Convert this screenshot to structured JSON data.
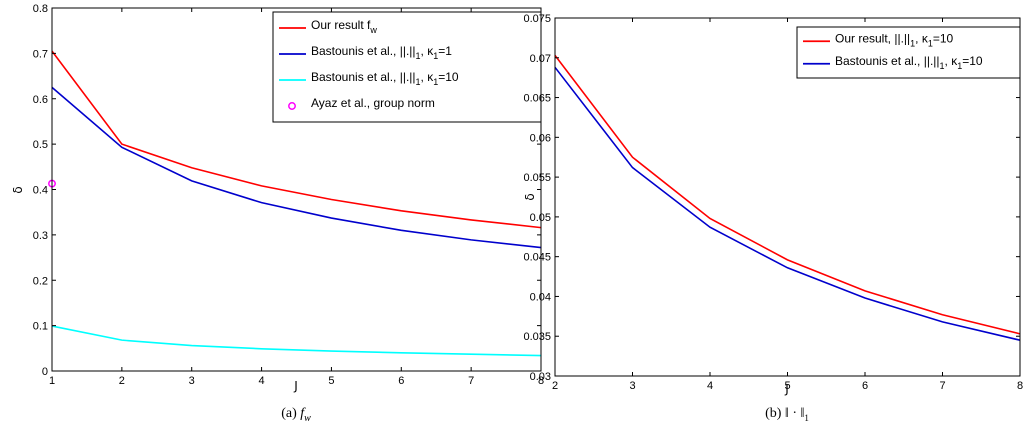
{
  "chart_data": [
    {
      "type": "line",
      "caption": "(a) f_w",
      "caption_parts": [
        "(a) ",
        "f",
        "w"
      ],
      "xlabel": "J",
      "ylabel": "δ",
      "xlim": [
        1,
        8
      ],
      "ylim": [
        0,
        0.8
      ],
      "xticks": [
        "1",
        "2",
        "3",
        "4",
        "5",
        "6",
        "7",
        "8"
      ],
      "yticks": [
        "0",
        "0.1",
        "0.2",
        "0.3",
        "0.4",
        "0.5",
        "0.6",
        "0.7",
        "0.8"
      ],
      "legend_position": "top-right",
      "series": [
        {
          "name": "Our result f_w",
          "name_parts": [
            "Our result f",
            "w",
            ""
          ],
          "color": "#ff0000",
          "x": [
            1,
            2,
            3,
            4,
            5,
            6,
            7,
            8
          ],
          "y": [
            0.705,
            0.5,
            0.448,
            0.408,
            0.378,
            0.353,
            0.333,
            0.316
          ]
        },
        {
          "name": "Bastounis et al., ||.||_1, κ_1=1",
          "name_parts": [
            "Bastounis et al., ||.||",
            "1",
            ", κ",
            "1",
            "=1"
          ],
          "color": "#0000cc",
          "x": [
            1,
            2,
            3,
            4,
            5,
            6,
            7,
            8
          ],
          "y": [
            0.625,
            0.493,
            0.419,
            0.371,
            0.337,
            0.31,
            0.289,
            0.272
          ]
        },
        {
          "name": "Bastounis et al., ||.||_1, κ_1=10",
          "name_parts": [
            "Bastounis et al., ||.||",
            "1",
            ", κ",
            "1",
            "=10"
          ],
          "color": "#00ffff",
          "x": [
            1,
            2,
            3,
            4,
            5,
            6,
            7,
            8
          ],
          "y": [
            0.099,
            0.068,
            0.056,
            0.049,
            0.044,
            0.04,
            0.037,
            0.034
          ]
        },
        {
          "name": "Ayaz et al., group norm",
          "name_parts": [
            "Ayaz et al., group norm"
          ],
          "color": "#ff00ff",
          "marker": "circle",
          "x": [
            1
          ],
          "y": [
            0.413
          ]
        }
      ]
    },
    {
      "type": "line",
      "caption": "(b) ‖·‖_1",
      "caption_parts": [
        "(b) ‖ · ‖",
        "1"
      ],
      "xlabel": "J",
      "ylabel": "δ",
      "xlim": [
        2,
        8
      ],
      "ylim": [
        0.03,
        0.075
      ],
      "xticks": [
        "2",
        "3",
        "4",
        "5",
        "6",
        "7",
        "8"
      ],
      "yticks": [
        "0.03",
        "0.035",
        "0.04",
        "0.045",
        "0.05",
        "0.055",
        "0.06",
        "0.065",
        "0.07",
        "0.075"
      ],
      "legend_position": "top-right",
      "series": [
        {
          "name": "Our result, ||.||_1, κ_1=10",
          "name_parts": [
            "Our result, ||.||",
            "1",
            ", κ",
            "1",
            "=10"
          ],
          "color": "#ff0000",
          "x": [
            2,
            3,
            4,
            5,
            6,
            7,
            8
          ],
          "y": [
            0.0703,
            0.0575,
            0.0498,
            0.0446,
            0.0407,
            0.0377,
            0.0353
          ]
        },
        {
          "name": "Bastounis et al., ||.||_1, κ_1=10",
          "name_parts": [
            "Bastounis et al., ||.||",
            "1",
            ", κ",
            "1",
            "=10"
          ],
          "color": "#0000cc",
          "x": [
            2,
            3,
            4,
            5,
            6,
            7,
            8
          ],
          "y": [
            0.0688,
            0.0562,
            0.0487,
            0.0436,
            0.0398,
            0.0368,
            0.0345
          ]
        }
      ]
    }
  ]
}
